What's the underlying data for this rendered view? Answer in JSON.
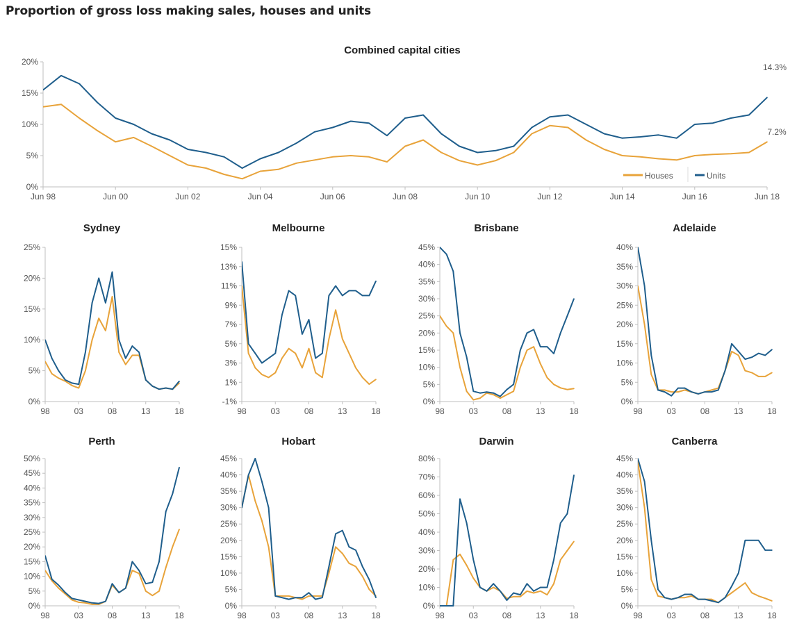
{
  "title": "Proportion of gross loss making sales, houses and units",
  "colors": {
    "houses": "#E8A33A",
    "units": "#1F5E8C",
    "axis": "#bfbfbf"
  },
  "chart_data": [
    {
      "type": "line",
      "title": "Combined capital cities",
      "x_ticks": [
        "Jun 98",
        "Jun 00",
        "Jun 02",
        "Jun 04",
        "Jun 06",
        "Jun 08",
        "Jun 10",
        "Jun 12",
        "Jun 14",
        "Jun 16",
        "Jun 18"
      ],
      "x_range": [
        1998.5,
        2018.5
      ],
      "x_start": 1998.5,
      "x_step": 0.5,
      "y_ticks": [
        "0%",
        "5%",
        "10%",
        "15%",
        "20%"
      ],
      "ylim": [
        0,
        20
      ],
      "legend": {
        "position": "bottom-right",
        "entries": [
          "Houses",
          "Units"
        ]
      },
      "end_labels": {
        "units": "14.3%",
        "houses": "7.2%"
      },
      "series": [
        {
          "name": "Houses",
          "values": [
            12.8,
            13.2,
            11,
            9,
            7.2,
            7.9,
            6.5,
            5,
            3.5,
            3,
            2,
            1.3,
            2.5,
            2.8,
            3.8,
            4.3,
            4.8,
            5,
            4.8,
            4,
            6.5,
            7.5,
            5.5,
            4.2,
            3.5,
            4.2,
            5.5,
            8.5,
            9.8,
            9.5,
            7.5,
            6,
            5,
            4.8,
            4.5,
            4.3,
            5,
            5.2,
            5.3,
            5.5,
            7.2
          ]
        },
        {
          "name": "Units",
          "values": [
            15.5,
            17.8,
            16.5,
            13.5,
            11,
            10,
            8.5,
            7.5,
            6,
            5.5,
            4.8,
            3,
            4.5,
            5.5,
            7,
            8.8,
            9.5,
            10.5,
            10.2,
            8.2,
            11,
            11.5,
            8.5,
            6.5,
            5.5,
            5.8,
            6.5,
            9.5,
            11.2,
            11.5,
            10,
            8.5,
            7.8,
            8,
            8.3,
            7.8,
            10,
            10.2,
            11,
            11.5,
            14.3
          ]
        }
      ]
    },
    {
      "type": "line",
      "title": "Sydney",
      "x_ticks": [
        "98",
        "03",
        "08",
        "13",
        "18"
      ],
      "x_start": 1998,
      "x_step": 1,
      "ylim": [
        0,
        25
      ],
      "y_ticks": [
        "0%",
        "5%",
        "10%",
        "15%",
        "20%",
        "25%"
      ],
      "series": [
        {
          "name": "Houses",
          "values": [
            6.5,
            4.5,
            3.8,
            3.3,
            2.6,
            2.2,
            5,
            10,
            13.5,
            11.5,
            17,
            8,
            6,
            7.5,
            7.5,
            3.5,
            2.5,
            2,
            2.2,
            2,
            3
          ]
        },
        {
          "name": "Units",
          "values": [
            10,
            7,
            5,
            3.5,
            3,
            2.8,
            8,
            16,
            20,
            16,
            21,
            10,
            7,
            9,
            8,
            3.5,
            2.5,
            2,
            2.2,
            2,
            3.3
          ]
        }
      ]
    },
    {
      "type": "line",
      "title": "Melbourne",
      "x_ticks": [
        "98",
        "03",
        "08",
        "13",
        "18"
      ],
      "x_start": 1998,
      "x_step": 1,
      "ylim": [
        -1,
        15
      ],
      "y_ticks": [
        "-1%",
        "1%",
        "3%",
        "5%",
        "7%",
        "9%",
        "11%",
        "13%",
        "15%"
      ],
      "series": [
        {
          "name": "Houses",
          "values": [
            11,
            4,
            2.5,
            1.8,
            1.5,
            2,
            3.5,
            4.5,
            4,
            2.5,
            4.5,
            2,
            1.5,
            5.5,
            8.5,
            5.5,
            4,
            2.5,
            1.5,
            0.8,
            1.3
          ]
        },
        {
          "name": "Units",
          "values": [
            13.5,
            5,
            4,
            3,
            3.5,
            4,
            8,
            10.5,
            10,
            6,
            7.5,
            3.5,
            4,
            10,
            11,
            10,
            10.5,
            10.5,
            10,
            10,
            11.5
          ]
        }
      ]
    },
    {
      "type": "line",
      "title": "Brisbane",
      "x_ticks": [
        "98",
        "03",
        "08",
        "13",
        "18"
      ],
      "x_start": 1998,
      "x_step": 1,
      "ylim": [
        0,
        45
      ],
      "y_ticks": [
        "0%",
        "5%",
        "10%",
        "15%",
        "20%",
        "25%",
        "30%",
        "35%",
        "40%",
        "45%"
      ],
      "series": [
        {
          "name": "Houses",
          "values": [
            25,
            22,
            20,
            10,
            3,
            0.5,
            1,
            2.5,
            2,
            1,
            2,
            3,
            10,
            15,
            16,
            11,
            7,
            5,
            4,
            3.5,
            3.8
          ]
        },
        {
          "name": "Units",
          "values": [
            45,
            43,
            38,
            20,
            13,
            3,
            2.5,
            2.8,
            2.5,
            1.5,
            3.5,
            5,
            15,
            20,
            21,
            16,
            16,
            14,
            20,
            25,
            30
          ]
        }
      ]
    },
    {
      "type": "line",
      "title": "Adelaide",
      "x_ticks": [
        "98",
        "03",
        "08",
        "13",
        "18"
      ],
      "x_start": 1998,
      "x_step": 1,
      "ylim": [
        0,
        40
      ],
      "y_ticks": [
        "0%",
        "5%",
        "10%",
        "15%",
        "20%",
        "25%",
        "30%",
        "35%",
        "40%"
      ],
      "series": [
        {
          "name": "Houses",
          "values": [
            30,
            20,
            7,
            3,
            3,
            2.5,
            2.5,
            3,
            2.5,
            2,
            2.5,
            3,
            3.5,
            8,
            13,
            12,
            8,
            7.5,
            6.5,
            6.5,
            7.5
          ]
        },
        {
          "name": "Units",
          "values": [
            40,
            30,
            12,
            3,
            2.5,
            1.5,
            3.5,
            3.5,
            2.5,
            2,
            2.5,
            2.5,
            3,
            8,
            15,
            13,
            11,
            11.5,
            12.5,
            12,
            13.5
          ]
        }
      ]
    },
    {
      "type": "line",
      "title": "Perth",
      "x_ticks": [
        "98",
        "03",
        "08",
        "13",
        "18"
      ],
      "x_start": 1998,
      "x_step": 1,
      "ylim": [
        0,
        50
      ],
      "y_ticks": [
        "0%",
        "5%",
        "10%",
        "15%",
        "20%",
        "25%",
        "30%",
        "35%",
        "40%",
        "45%",
        "50%"
      ],
      "series": [
        {
          "name": "Houses",
          "values": [
            12,
            8.5,
            6,
            4,
            2,
            1.2,
            1,
            0.5,
            0.5,
            1.5,
            7,
            4.5,
            6,
            12,
            11,
            5,
            3.5,
            5,
            13,
            20,
            26
          ]
        },
        {
          "name": "Units",
          "values": [
            17,
            9,
            7,
            4.5,
            2.5,
            2,
            1.5,
            1,
            0.8,
            1.5,
            7.5,
            4.5,
            6,
            15,
            12,
            7.5,
            8,
            15,
            32,
            38,
            47
          ]
        }
      ]
    },
    {
      "type": "line",
      "title": "Hobart",
      "x_ticks": [
        "98",
        "03",
        "08",
        "13",
        "18"
      ],
      "x_start": 1998,
      "x_step": 1,
      "ylim": [
        0,
        45
      ],
      "y_ticks": [
        "0%",
        "5%",
        "10%",
        "15%",
        "20%",
        "25%",
        "30%",
        "35%",
        "40%",
        "45%"
      ],
      "series": [
        {
          "name": "Houses",
          "values": [
            30,
            40,
            32,
            26,
            18,
            3,
            3,
            3,
            2.5,
            2,
            3,
            3,
            3,
            10,
            18,
            16,
            13,
            12,
            9,
            5,
            3
          ]
        },
        {
          "name": "Units",
          "values": [
            30,
            40,
            45,
            38,
            30,
            3,
            2.5,
            2,
            2.5,
            2.5,
            4,
            2,
            2.5,
            12,
            22,
            23,
            18,
            17,
            12,
            8,
            2.5
          ]
        }
      ]
    },
    {
      "type": "line",
      "title": "Darwin",
      "x_ticks": [
        "98",
        "03",
        "08",
        "13",
        "18"
      ],
      "x_start": 1998,
      "x_step": 1,
      "ylim": [
        0,
        80
      ],
      "y_ticks": [
        "0%",
        "10%",
        "20%",
        "30%",
        "40%",
        "50%",
        "60%",
        "70%",
        "80%"
      ],
      "series": [
        {
          "name": "Houses",
          "values": [
            0,
            0,
            25,
            28,
            22,
            15,
            10,
            8,
            10,
            8,
            4,
            5,
            5,
            8,
            7,
            8,
            6,
            12,
            25,
            30,
            35
          ]
        },
        {
          "name": "Units",
          "values": [
            0,
            0,
            0,
            58,
            45,
            25,
            10,
            8,
            12,
            8,
            3,
            7,
            6,
            12,
            8,
            10,
            10,
            25,
            45,
            50,
            71
          ]
        }
      ]
    },
    {
      "type": "line",
      "title": "Canberra",
      "x_ticks": [
        "98",
        "03",
        "08",
        "13",
        "18"
      ],
      "x_start": 1998,
      "x_step": 1,
      "ylim": [
        0,
        45
      ],
      "y_ticks": [
        "0%",
        "5%",
        "10%",
        "15%",
        "20%",
        "25%",
        "30%",
        "35%",
        "40%",
        "45%"
      ],
      "series": [
        {
          "name": "Houses",
          "values": [
            44,
            30,
            8,
            3,
            2.5,
            2,
            2.5,
            2.5,
            3,
            2,
            2,
            2,
            1,
            2.5,
            4,
            5.5,
            7,
            4,
            3,
            2.3,
            1.5
          ]
        },
        {
          "name": "Units",
          "values": [
            45,
            38,
            20,
            5,
            2.5,
            2,
            2.5,
            3.5,
            3.5,
            2,
            2,
            1.5,
            1,
            2.5,
            6,
            10,
            20,
            20,
            20,
            17,
            17
          ]
        }
      ]
    }
  ]
}
